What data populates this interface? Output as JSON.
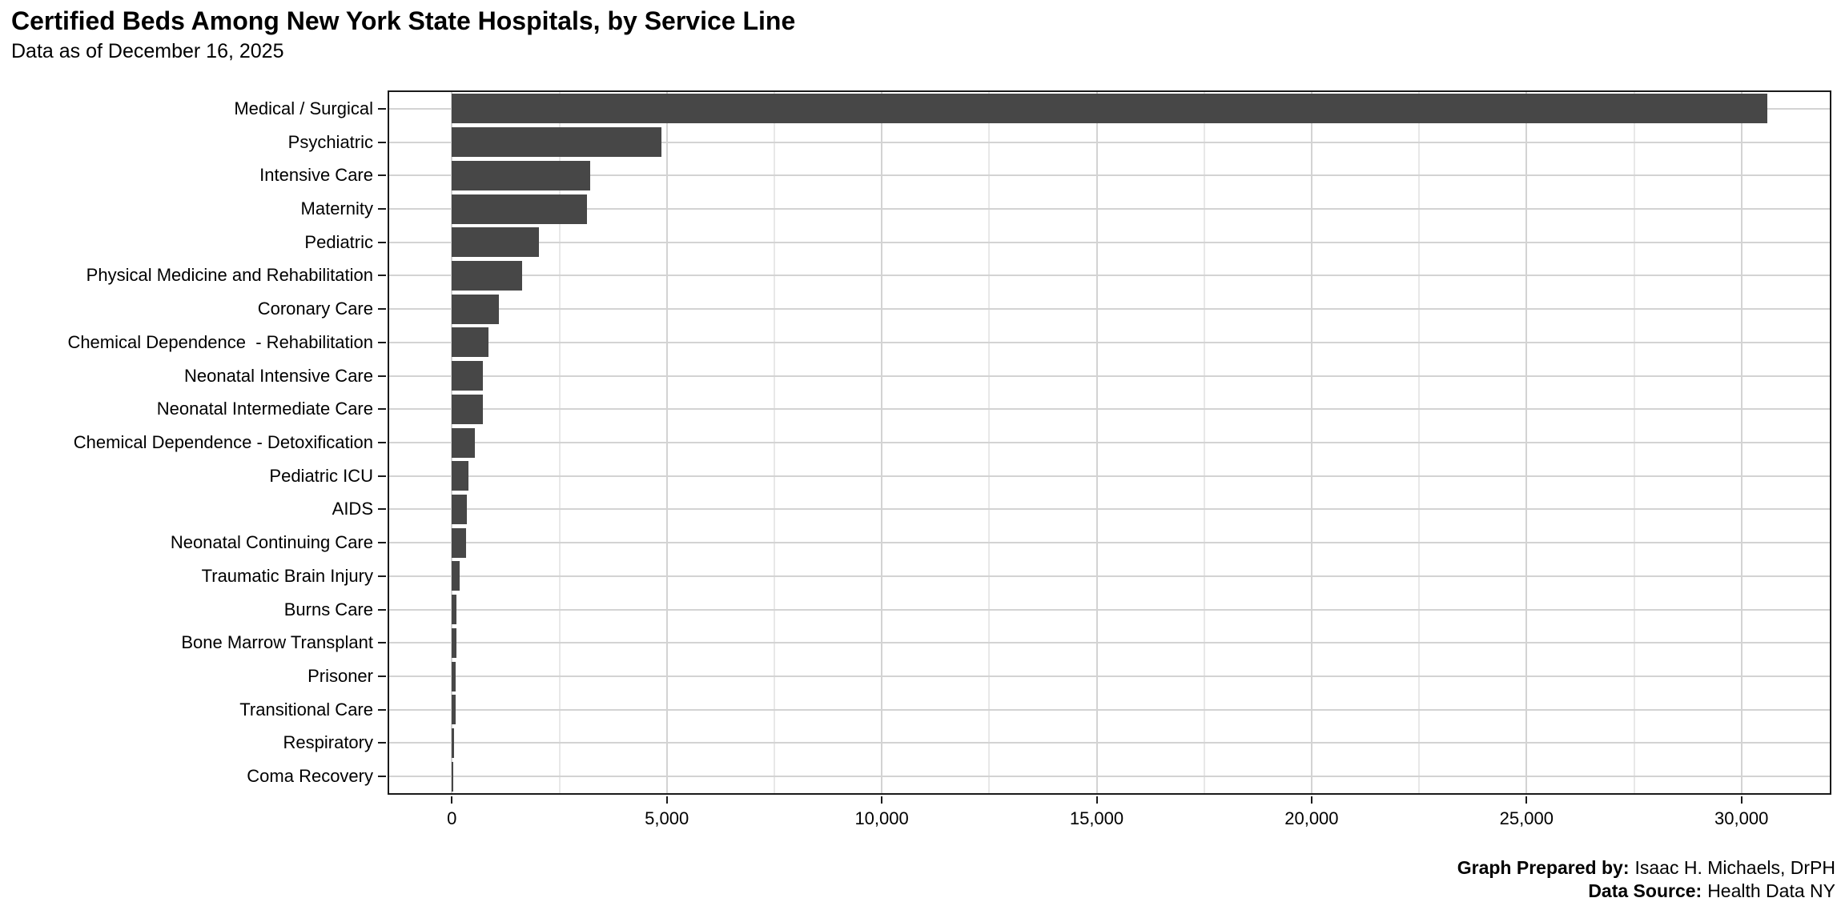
{
  "footer": {
    "prepared_by_label": "Graph Prepared by:",
    "prepared_by_value": "Isaac H. Michaels, DrPH",
    "source_label": "Data Source:",
    "source_value": "Health Data NY"
  },
  "chart_data": {
    "type": "bar",
    "orientation": "horizontal",
    "title": "Certified Beds Among New York State Hospitals, by Service Line",
    "subtitle": "Data as of December 16, 2025",
    "xlabel": "",
    "ylabel": "",
    "categories": [
      "Medical / Surgical",
      "Psychiatric",
      "Intensive Care",
      "Maternity",
      "Pediatric",
      "Physical Medicine and Rehabilitation",
      "Coronary Care",
      "Chemical Dependence  - Rehabilitation",
      "Neonatal Intensive Care",
      "Neonatal Intermediate Care",
      "Chemical Dependence - Detoxification",
      "Pediatric ICU",
      "AIDS",
      "Neonatal Continuing Care",
      "Traumatic Brain Injury",
      "Burns Care",
      "Bone Marrow Transplant",
      "Prisoner",
      "Transitional Care",
      "Respiratory",
      "Coma Recovery"
    ],
    "values": [
      30600,
      4870,
      3210,
      3140,
      2030,
      1630,
      1090,
      845,
      730,
      715,
      540,
      390,
      355,
      335,
      175,
      105,
      100,
      95,
      85,
      50,
      35
    ],
    "x_ticks": [
      0,
      5000,
      10000,
      15000,
      20000,
      25000,
      30000
    ],
    "x_tick_labels": [
      "0",
      "5,000",
      "10,000",
      "15,000",
      "20,000",
      "25,000",
      "30,000"
    ],
    "x_minor_ticks": [
      2500,
      7500,
      12500,
      17500,
      22500,
      27500
    ],
    "xlim": [
      0,
      32150
    ],
    "grid": "vertical major+minor, horizontal major at category centers",
    "legend_position": "none",
    "colors": {
      "bar": "#474747",
      "panel_border": "#1a1a1a",
      "grid_major": "#d3d3d3",
      "grid_minor": "#e8e8e8",
      "axis_text": "#000000",
      "background": "#ffffff"
    }
  }
}
